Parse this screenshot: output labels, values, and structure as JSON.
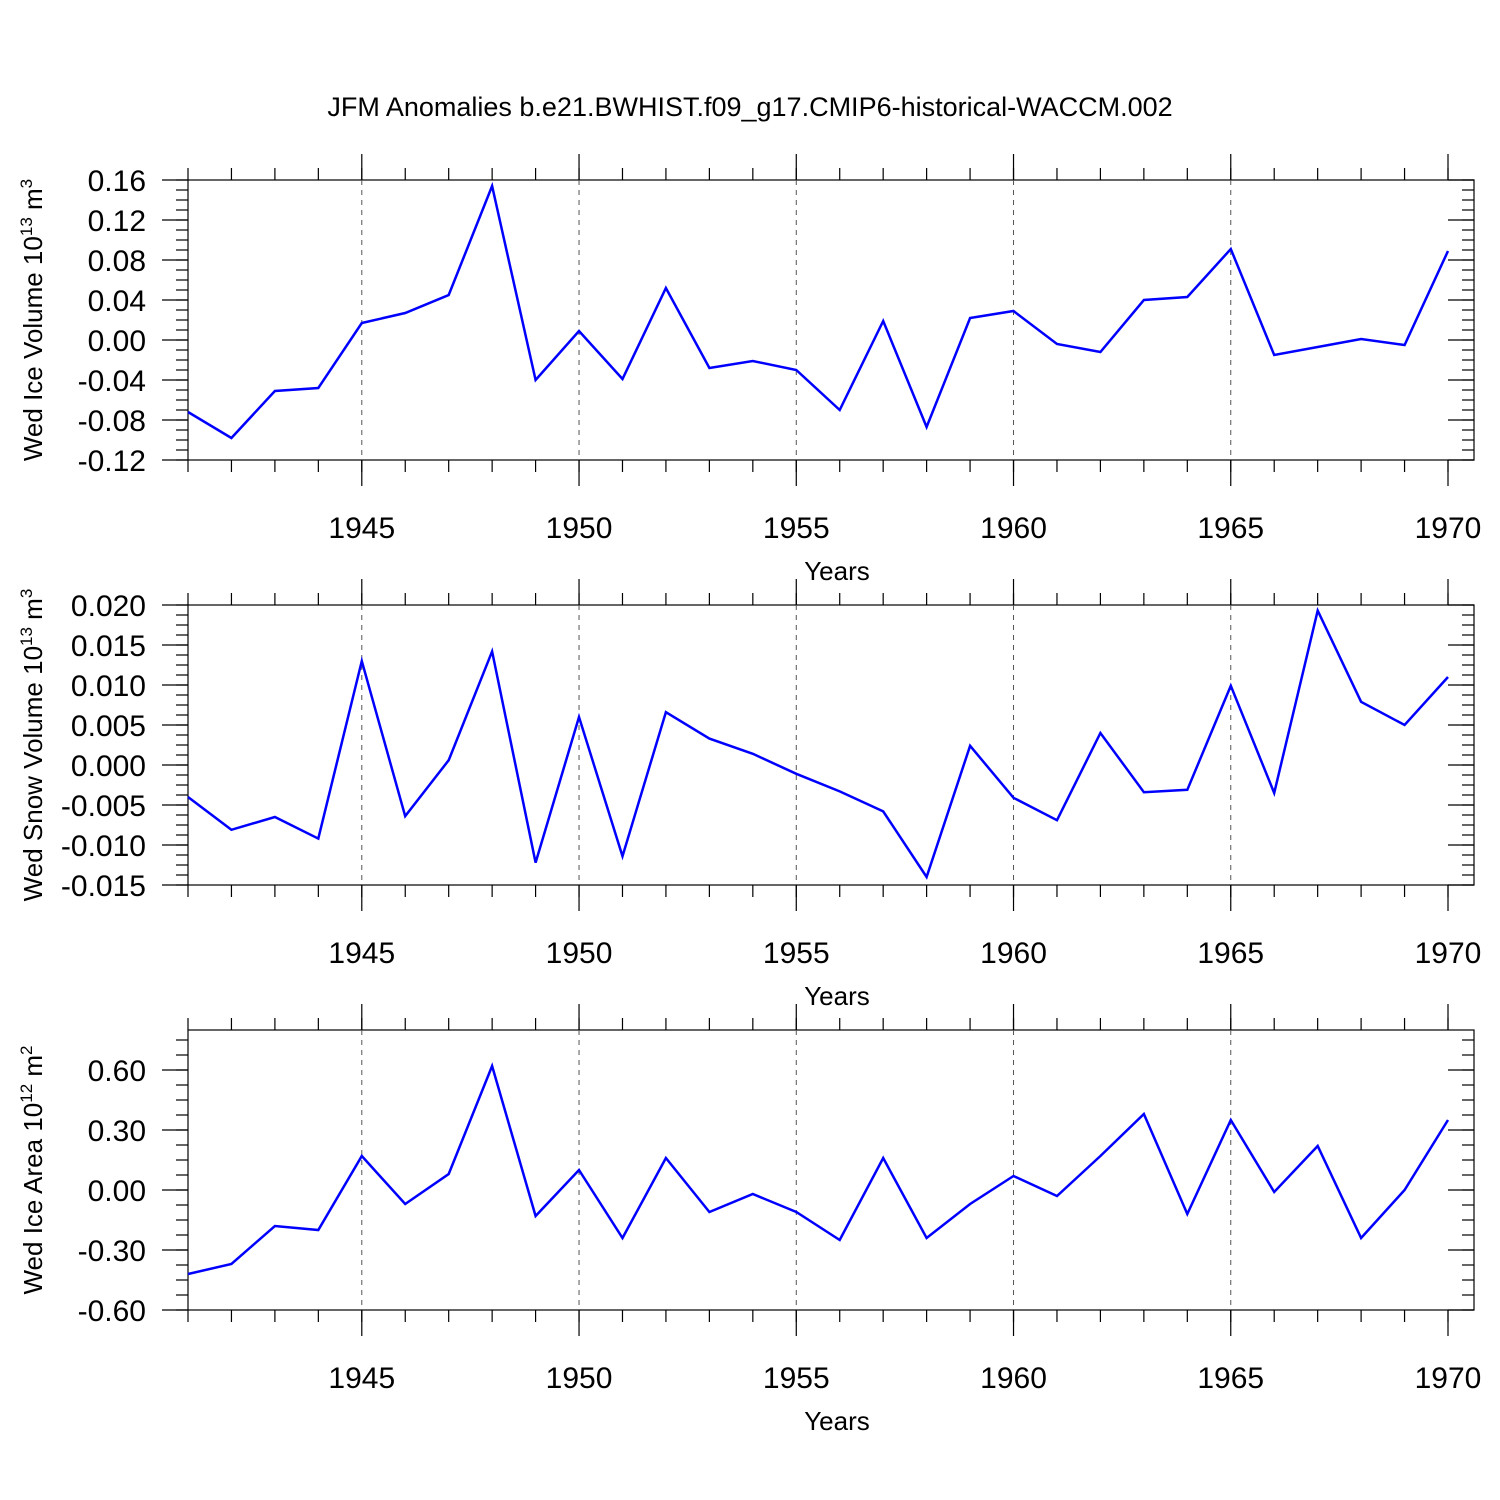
{
  "title": "JFM Anomalies b.e21.BWHIST.f09_g17.CMIP6-historical-WACCM.002",
  "chart_data": [
    {
      "type": "line",
      "name": "ice-volume",
      "ylabel_main": "Wed Ice Volume 10",
      "ylabel_sup": "13",
      "ylabel_unit": " m",
      "ylabel_unit_sup": "3",
      "xlabel": "Years",
      "xlim": [
        1941,
        1970
      ],
      "ylim": [
        -0.12,
        0.16
      ],
      "yticks": [
        "0.16",
        "0.12",
        "0.08",
        "0.04",
        "0.00",
        "-0.04",
        "-0.08",
        "-0.12"
      ],
      "xticks": [
        "1945",
        "1950",
        "1955",
        "1960",
        "1965",
        "1970"
      ],
      "color": "#0000ff",
      "x": [
        1941,
        1942,
        1943,
        1944,
        1945,
        1946,
        1947,
        1948,
        1949,
        1950,
        1951,
        1952,
        1953,
        1954,
        1955,
        1956,
        1957,
        1958,
        1959,
        1960,
        1961,
        1962,
        1963,
        1964,
        1965,
        1966,
        1967,
        1968,
        1969,
        1970
      ],
      "values": [
        -0.072,
        -0.098,
        -0.051,
        -0.048,
        0.017,
        0.027,
        0.045,
        0.154,
        -0.04,
        0.009,
        -0.039,
        0.052,
        -0.028,
        -0.021,
        -0.03,
        -0.07,
        0.019,
        -0.087,
        0.022,
        0.029,
        -0.004,
        -0.012,
        0.04,
        0.043,
        0.091,
        -0.015,
        -0.007,
        0.001,
        -0.005,
        0.089
      ]
    },
    {
      "type": "line",
      "name": "snow-volume",
      "ylabel_main": "Wed Snow Volume 10",
      "ylabel_sup": "13",
      "ylabel_unit": " m",
      "ylabel_unit_sup": "3",
      "xlabel": "Years",
      "xlim": [
        1941,
        1970
      ],
      "ylim": [
        -0.015,
        0.02
      ],
      "yticks": [
        "0.020",
        "0.015",
        "0.010",
        "0.005",
        "0.000",
        "-0.005",
        "-0.010",
        "-0.015"
      ],
      "xticks": [
        "1945",
        "1950",
        "1955",
        "1960",
        "1965",
        "1970"
      ],
      "color": "#0000ff",
      "x": [
        1941,
        1942,
        1943,
        1944,
        1945,
        1946,
        1947,
        1948,
        1949,
        1950,
        1951,
        1952,
        1953,
        1954,
        1955,
        1956,
        1957,
        1958,
        1959,
        1960,
        1961,
        1962,
        1963,
        1964,
        1965,
        1966,
        1967,
        1968,
        1969,
        1970
      ],
      "values": [
        -0.004,
        -0.0081,
        -0.0065,
        -0.0092,
        0.013,
        -0.0064,
        0.0006,
        0.0142,
        -0.0122,
        0.006,
        -0.0114,
        0.0066,
        0.0033,
        0.0014,
        -0.0011,
        -0.0033,
        -0.0058,
        -0.014,
        0.0024,
        -0.0041,
        -0.0069,
        0.004,
        -0.0034,
        -0.0031,
        0.0099,
        -0.0035,
        0.0193,
        0.0079,
        0.005,
        0.011
      ]
    },
    {
      "type": "line",
      "name": "ice-area",
      "ylabel_main": "Wed Ice Area 10",
      "ylabel_sup": "12",
      "ylabel_unit": " m",
      "ylabel_unit_sup": "2",
      "xlabel": "Years",
      "xlim": [
        1941,
        1970
      ],
      "ylim": [
        -0.6,
        0.8
      ],
      "yticks": [
        "0.60",
        "0.30",
        "0.00",
        "-0.30",
        "-0.60"
      ],
      "ytick_values": [
        0.6,
        0.3,
        0.0,
        -0.3,
        -0.6
      ],
      "xticks": [
        "1945",
        "1950",
        "1955",
        "1960",
        "1965",
        "1970"
      ],
      "color": "#0000ff",
      "x": [
        1941,
        1942,
        1943,
        1944,
        1945,
        1946,
        1947,
        1948,
        1949,
        1950,
        1951,
        1952,
        1953,
        1954,
        1955,
        1956,
        1957,
        1958,
        1959,
        1960,
        1961,
        1962,
        1963,
        1964,
        1965,
        1966,
        1967,
        1968,
        1969,
        1970
      ],
      "values": [
        -0.42,
        -0.37,
        -0.18,
        -0.2,
        0.17,
        -0.07,
        0.08,
        0.62,
        -0.13,
        0.1,
        -0.24,
        0.16,
        -0.11,
        -0.02,
        -0.11,
        -0.25,
        0.16,
        -0.24,
        -0.07,
        0.07,
        -0.03,
        0.17,
        0.38,
        -0.12,
        0.35,
        -0.01,
        0.22,
        -0.24,
        0.0,
        0.35
      ]
    }
  ]
}
